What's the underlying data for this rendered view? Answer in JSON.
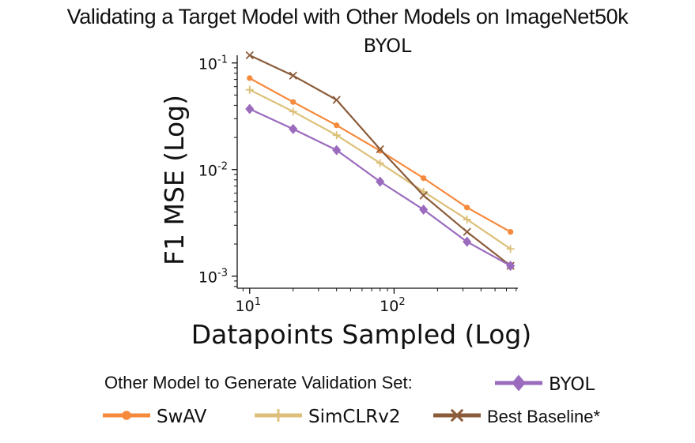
{
  "chart_data": {
    "type": "line",
    "title": "Validating a Target Model with Other Models on ImageNet50k",
    "subtitle": "BYOL",
    "xlabel": "Datapoints Sampled (Log)",
    "ylabel": "F1 MSE (Log)",
    "xscale": "log",
    "yscale": "log",
    "xlim": [
      8.2,
      720
    ],
    "ylim": [
      0.00077,
      0.118
    ],
    "x_tick_labels": [
      "10",
      "10"
    ],
    "x_tick_exponents": [
      "1",
      "2"
    ],
    "y_tick_labels": [
      "10",
      "10",
      "10"
    ],
    "y_tick_exponents": [
      "-1",
      "-2",
      "-3"
    ],
    "grid": false,
    "legend_title": "Other Model to Generate Validation Set:",
    "legend_position": "below",
    "x": [
      10,
      20,
      40,
      80,
      160,
      320,
      640
    ],
    "series": [
      {
        "name": "SwAV",
        "color": "#f5893c",
        "marker": "dot",
        "values": [
          0.072,
          0.043,
          0.026,
          0.015,
          0.0083,
          0.0044,
          0.0026
        ]
      },
      {
        "name": "SimCLRv2",
        "color": "#dcc079",
        "marker": "plus",
        "values": [
          0.056,
          0.035,
          0.021,
          0.0115,
          0.0062,
          0.0034,
          0.0018
        ]
      },
      {
        "name": "Best Baseline*",
        "color": "#8b5c3a",
        "marker": "x",
        "values": [
          0.118,
          0.076,
          0.045,
          0.0155,
          0.0057,
          0.0026,
          0.00125
        ]
      },
      {
        "name": "BYOL",
        "color": "#9b6bbe",
        "marker": "diamond",
        "values": [
          0.037,
          0.024,
          0.0152,
          0.0077,
          0.0042,
          0.0021,
          0.00125
        ]
      }
    ]
  }
}
